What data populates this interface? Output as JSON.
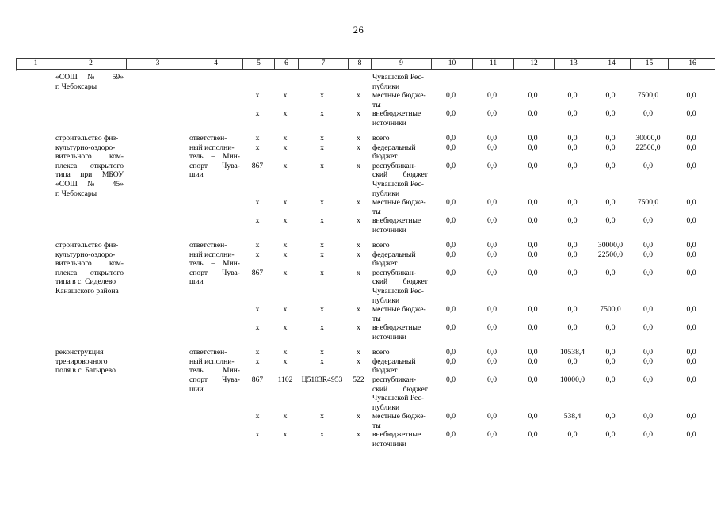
{
  "page": {
    "number": "26"
  },
  "table": {
    "column_numbers": [
      "1",
      "2",
      "3",
      "4",
      "5",
      "6",
      "7",
      "8",
      "9",
      "10",
      "11",
      "12",
      "13",
      "14",
      "15",
      "16"
    ],
    "blocks": [
      {
        "lines": [
          {
            "2": [
              "«СОШ № 59»",
              "j"
            ],
            "9": "Чувашской Рес-"
          },
          {
            "2": "г. Чебоксары",
            "9": "публики"
          },
          {
            "5": "x",
            "6": "x",
            "7": "x",
            "8": "x",
            "9": "местные бюдже-",
            "10": "0,0",
            "11": "0,0",
            "12": "0,0",
            "13": "0,0",
            "14": "0,0",
            "15": "7500,0",
            "16": "0,0"
          },
          {
            "9": "ты"
          },
          {
            "5": "x",
            "6": "x",
            "7": "x",
            "8": "x",
            "9": "внебюджетные",
            "10": "0,0",
            "11": "0,0",
            "12": "0,0",
            "13": "0,0",
            "14": "0,0",
            "15": "0,0",
            "16": "0,0"
          },
          {
            "9": "источники"
          }
        ]
      },
      {
        "lines": [
          {
            "2": "строительство физ-",
            "4": "ответствен-",
            "5": "x",
            "6": "x",
            "7": "x",
            "8": "x",
            "9": "всего",
            "10": "0,0",
            "11": "0,0",
            "12": "0,0",
            "13": "0,0",
            "14": "0,0",
            "15": "30000,0",
            "16": "0,0"
          },
          {
            "2": "культурно-оздоро-",
            "4": "ный исполни-",
            "5": "x",
            "6": "x",
            "7": "x",
            "8": "x",
            "9": "федеральный",
            "10": "0,0",
            "11": "0,0",
            "12": "0,0",
            "13": "0,0",
            "14": "0,0",
            "15": "22500,0",
            "16": "0,0"
          },
          {
            "2": [
              "вительного ком-",
              "j"
            ],
            "4": [
              "тель – Мин-",
              "j"
            ],
            "9": "бюджет"
          },
          {
            "2": [
              "плекса открытого",
              "j"
            ],
            "4": [
              "спорт Чува-",
              "j"
            ],
            "5": "867",
            "6": "x",
            "7": "x",
            "8": "x",
            "9": "республикан-",
            "10": "0,0",
            "11": "0,0",
            "12": "0,0",
            "13": "0,0",
            "14": "0,0",
            "15": "0,0",
            "16": "0,0"
          },
          {
            "2": [
              "типа при МБОУ",
              "j"
            ],
            "4": "шии",
            "9": [
              "ский бюджет",
              "j"
            ]
          },
          {
            "2": [
              "«СОШ № 45»",
              "j"
            ],
            "9": "Чувашской Рес-"
          },
          {
            "2": "г. Чебоксары",
            "9": "публики"
          },
          {
            "5": "x",
            "6": "x",
            "7": "x",
            "8": "x",
            "9": "местные бюдже-",
            "10": "0,0",
            "11": "0,0",
            "12": "0,0",
            "13": "0,0",
            "14": "0,0",
            "15": "7500,0",
            "16": "0,0"
          },
          {
            "9": "ты"
          },
          {
            "5": "x",
            "6": "x",
            "7": "x",
            "8": "x",
            "9": "внебюджетные",
            "10": "0,0",
            "11": "0,0",
            "12": "0,0",
            "13": "0,0",
            "14": "0,0",
            "15": "0,0",
            "16": "0,0"
          },
          {
            "9": "источники"
          }
        ]
      },
      {
        "lines": [
          {
            "2": "строительство физ-",
            "4": "ответствен-",
            "5": "x",
            "6": "x",
            "7": "x",
            "8": "x",
            "9": "всего",
            "10": "0,0",
            "11": "0,0",
            "12": "0,0",
            "13": "0,0",
            "14": "30000,0",
            "15": "0,0",
            "16": "0,0"
          },
          {
            "2": "культурно-оздоро-",
            "4": "ный исполни-",
            "5": "x",
            "6": "x",
            "7": "x",
            "8": "x",
            "9": "федеральный",
            "10": "0,0",
            "11": "0,0",
            "12": "0,0",
            "13": "0,0",
            "14": "22500,0",
            "15": "0,0",
            "16": "0,0"
          },
          {
            "2": [
              "вительного ком-",
              "j"
            ],
            "4": [
              "тель – Мин-",
              "j"
            ],
            "9": "бюджет"
          },
          {
            "2": [
              "плекса открытого",
              "j"
            ],
            "4": [
              "спорт Чува-",
              "j"
            ],
            "5": "867",
            "6": "x",
            "7": "x",
            "8": "x",
            "9": "республикан-",
            "10": "0,0",
            "11": "0,0",
            "12": "0,0",
            "13": "0,0",
            "14": "0,0",
            "15": "0,0",
            "16": "0,0"
          },
          {
            "2": "типа в с. Сиделево",
            "4": "шии",
            "9": [
              "ский бюджет",
              "j"
            ]
          },
          {
            "2": "Канашского района",
            "9": "Чувашской Рес-"
          },
          {
            "9": "публики"
          },
          {
            "5": "x",
            "6": "x",
            "7": "x",
            "8": "x",
            "9": "местные бюдже-",
            "10": "0,0",
            "11": "0,0",
            "12": "0,0",
            "13": "0,0",
            "14": "7500,0",
            "15": "0,0",
            "16": "0,0"
          },
          {
            "9": "ты"
          },
          {
            "5": "x",
            "6": "x",
            "7": "x",
            "8": "x",
            "9": "внебюджетные",
            "10": "0,0",
            "11": "0,0",
            "12": "0,0",
            "13": "0,0",
            "14": "0,0",
            "15": "0,0",
            "16": "0,0"
          },
          {
            "9": "источники"
          }
        ]
      },
      {
        "lines": [
          {
            "2": "реконструкция",
            "4": "ответствен-",
            "5": "x",
            "6": "x",
            "7": "x",
            "8": "x",
            "9": "всего",
            "10": "0,0",
            "11": "0,0",
            "12": "0,0",
            "13": "10538,4",
            "14": "0,0",
            "15": "0,0",
            "16": "0,0"
          },
          {
            "2": "тренировочного",
            "4": "ный исполни-",
            "5": "x",
            "6": "x",
            "7": "x",
            "8": "x",
            "9": "федеральный",
            "10": "0,0",
            "11": "0,0",
            "12": "0,0",
            "13": "0,0",
            "14": "0,0",
            "15": "0,0",
            "16": "0,0"
          },
          {
            "2": "поля в с. Батырево",
            "4": [
              "тель Мин-",
              "j"
            ],
            "9": "бюджет"
          },
          {
            "4": [
              "спорт Чува-",
              "j"
            ],
            "5": "867",
            "6": "1102",
            "7": "Ц5103R4953",
            "8": "522",
            "9": "республикан-",
            "10": "0,0",
            "11": "0,0",
            "12": "0,0",
            "13": "10000,0",
            "14": "0,0",
            "15": "0,0",
            "16": "0,0"
          },
          {
            "4": "шии",
            "9": [
              "ский бюджет",
              "j"
            ]
          },
          {
            "9": "Чувашской Рес-"
          },
          {
            "9": "публики"
          },
          {
            "5": "x",
            "6": "x",
            "7": "x",
            "8": "x",
            "9": "местные бюдже-",
            "10": "0,0",
            "11": "0,0",
            "12": "0,0",
            "13": "538,4",
            "14": "0,0",
            "15": "0,0",
            "16": "0,0"
          },
          {
            "9": "ты"
          },
          {
            "5": "x",
            "6": "x",
            "7": "x",
            "8": "x",
            "9": "внебюджетные",
            "10": "0,0",
            "11": "0,0",
            "12": "0,0",
            "13": "0,0",
            "14": "0,0",
            "15": "0,0",
            "16": "0,0"
          },
          {
            "9": "источники"
          }
        ]
      }
    ]
  }
}
